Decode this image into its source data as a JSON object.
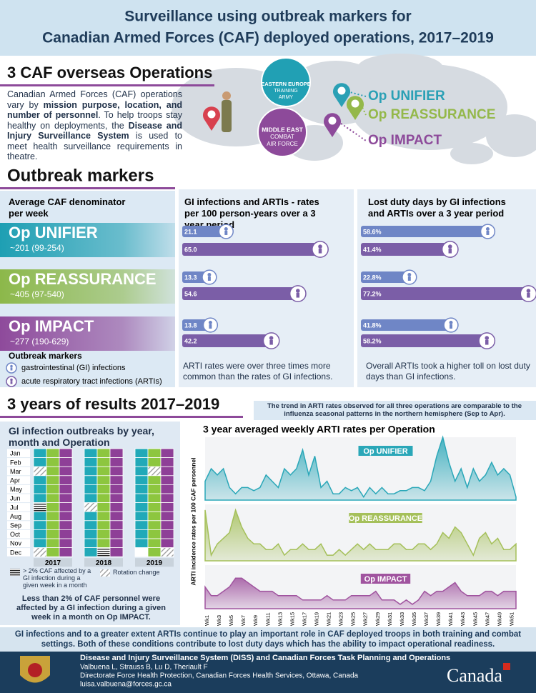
{
  "header": {
    "title_line1": "Surveillance using outbreak markers for",
    "title_line2": "Canadian Armed Forces (CAF) deployed operations, 2017–2019"
  },
  "operations": {
    "heading": "3 CAF overseas Operations",
    "paragraph": [
      {
        "text": "Canadian Armed Forces (CAF) operations vary by ",
        "bold": false
      },
      {
        "text": "mission purpose, location, and number of personnel",
        "bold": true
      },
      {
        "text": ". To help troops stay healthy on deployments, the ",
        "bold": false
      },
      {
        "text": "Disease and Injury Surveillance System",
        "bold": true
      },
      {
        "text": " is used to meet health surveillance requirements in theatre.",
        "bold": false
      }
    ],
    "europe_label": [
      "EASTERN EUROPE",
      "TRAINING",
      "ARMY"
    ],
    "mideast_label": [
      "MIDDLE EAST",
      "COMBAT",
      "AIR FORCE"
    ],
    "map_ops": [
      {
        "name": "Op UNIFIER",
        "color": "#2aa0b5"
      },
      {
        "name": "Op REASSURANCE",
        "color": "#94b84a"
      },
      {
        "name": "Op IMPACT",
        "color": "#8d4a9a"
      }
    ]
  },
  "outbreak_markers": {
    "heading": "Outbreak markers",
    "denominator_title": "Average CAF denominator per week",
    "ops": [
      {
        "name": "Op UNIFIER",
        "denominator": "~201 (99-254)",
        "color": "#1e9fb3"
      },
      {
        "name": "Op REASSURANCE",
        "denominator": "~405 (97-540)",
        "color": "#8cb84a"
      },
      {
        "name": "Op IMPACT",
        "denominator": "~277 (190-629)",
        "color": "#8e4a9b"
      }
    ],
    "legend": {
      "title": "Outbreak markers",
      "gi": "gastrointestinal (GI) infections",
      "arti": "acute respiratory tract infections (ARTIs)"
    },
    "rates_note": "ARTI rates were over three times more common than the rates of GI infections.",
    "lost_note": "Overall ARTIs took a higher toll on lost duty days than GI infections."
  },
  "chart_data": [
    {
      "type": "bar",
      "title": "GI infections and ARTIs - rates per 100 person-years over a 3 year period",
      "xlim": [
        0,
        80
      ],
      "series": [
        {
          "color": "#6f86c6",
          "values": [
            21.1,
            13.3,
            13.8
          ],
          "value_labels": [
            "21.1",
            "13.3",
            "13.8"
          ]
        },
        {
          "color": "#7b5ea7",
          "values": [
            65.0,
            54.6,
            42.2
          ],
          "value_labels": [
            "65.0",
            "54.6",
            "42.2"
          ]
        }
      ]
    },
    {
      "type": "bar",
      "title": "Lost duty days by GI infections and ARTIs over a 3 year period",
      "xlim": [
        0,
        80
      ],
      "series": [
        {
          "color": "#6f86c6",
          "values": [
            58.6,
            22.8,
            41.8
          ],
          "value_labels": [
            "58.6%",
            "22.8%",
            "41.8%"
          ]
        },
        {
          "color": "#7b5ea7",
          "values": [
            41.4,
            77.2,
            58.2
          ],
          "value_labels": [
            "41.4%",
            "77.2%",
            "58.2%"
          ]
        }
      ]
    },
    {
      "type": "area",
      "title": "3 year averaged weekly ARTI rates per Operation",
      "y_label": "ARTI incidence rates per 100 CAF personnel",
      "ylim": [
        0,
        10
      ],
      "categories": [
        "Wk1",
        null,
        "Wk3",
        null,
        "Wk5",
        null,
        "Wk7",
        null,
        "Wk9",
        null,
        "Wk11",
        null,
        "Wk13",
        null,
        "Wk15",
        null,
        "Wk17",
        null,
        "Wk19",
        null,
        "Wk21",
        null,
        "Wk23",
        null,
        "Wk25",
        null,
        "Wk27",
        null,
        "Wk29",
        null,
        "Wk31",
        null,
        "Wk33",
        null,
        "Wk35",
        null,
        "Wk37",
        null,
        "Wk39",
        null,
        "Wk41",
        null,
        "Wk43",
        null,
        "Wk45",
        null,
        "Wk47",
        null,
        "Wk49",
        null,
        "Wk51",
        null
      ],
      "series": [
        {
          "name": "Op UNIFIER",
          "color": "#2aa7b8",
          "values": [
            3,
            5,
            4,
            5,
            2,
            1,
            2,
            2,
            1.5,
            2,
            4,
            3,
            2,
            5,
            4,
            5,
            8,
            4,
            7,
            2,
            3,
            1,
            1,
            2,
            1.5,
            2,
            0.5,
            2,
            1,
            2,
            1,
            1,
            1.5,
            1.5,
            2,
            2,
            1.5,
            3,
            7,
            10,
            6,
            3,
            5,
            2,
            5,
            3,
            4,
            6,
            4,
            5,
            4,
            0.5
          ]
        },
        {
          "name": "Op REASSURANCE",
          "color": "#a5c05a",
          "values": [
            9,
            1,
            3,
            4,
            5,
            9,
            6,
            4,
            3,
            3,
            2,
            2,
            3,
            1,
            2,
            2,
            3,
            2,
            2,
            3,
            1,
            1,
            2,
            1,
            2,
            3,
            2,
            3,
            2,
            2,
            2,
            3,
            3,
            2,
            2,
            3,
            3,
            2,
            3,
            5,
            4,
            6,
            5,
            3,
            1,
            4,
            5,
            3,
            4,
            2,
            2,
            3
          ]
        },
        {
          "name": "Op IMPACT",
          "color": "#a0549f",
          "values": [
            5,
            3,
            3,
            4,
            5,
            7,
            7,
            6,
            5,
            4,
            4,
            4,
            3,
            3,
            3,
            3,
            2,
            2,
            2,
            2,
            3,
            2,
            2,
            2,
            3,
            3,
            3,
            3,
            4,
            2,
            2,
            2,
            1,
            2,
            1,
            2,
            4,
            3,
            4,
            4,
            5,
            6,
            4,
            3,
            3,
            3,
            4,
            4,
            3,
            4,
            4,
            4
          ]
        }
      ]
    }
  ],
  "results": {
    "heading": "3 years of results 2017–2019",
    "trend_note": "The trend in ARTI rates observed for all three operations are comparable to the influenza seasonal patterns in the northern hemisphere (Sep to Apr).",
    "gi_grid": {
      "title": "GI infection outbreaks by year, month and Operation",
      "months": [
        "Jan",
        "Feb",
        "Mar",
        "Apr",
        "May",
        "Jun",
        "Jul",
        "Aug",
        "Sep",
        "Oct",
        "Nov",
        "Dec"
      ],
      "op_colors": [
        "#21a9b8",
        "#8dc63f",
        "#8e3f97"
      ],
      "years": [
        {
          "label": "2017",
          "ops": [
            [
              1,
              1,
              3,
              1,
              1,
              1,
              2,
              1,
              1,
              1,
              1,
              3
            ],
            [
              1,
              1,
              1,
              1,
              1,
              1,
              1,
              1,
              1,
              1,
              1,
              1
            ],
            [
              1,
              1,
              1,
              1,
              1,
              1,
              1,
              1,
              1,
              1,
              1,
              1
            ]
          ]
        },
        {
          "label": "2018",
          "ops": [
            [
              1,
              1,
              1,
              1,
              1,
              1,
              3,
              1,
              1,
              1,
              1,
              1
            ],
            [
              1,
              1,
              1,
              1,
              1,
              1,
              1,
              1,
              1,
              1,
              1,
              2
            ],
            [
              1,
              1,
              1,
              1,
              1,
              1,
              1,
              1,
              1,
              1,
              1,
              1
            ]
          ]
        },
        {
          "label": "2019",
          "ops": [
            [
              1,
              1,
              1,
              1,
              1,
              1,
              1,
              1,
              1,
              1,
              1,
              0
            ],
            [
              1,
              1,
              3,
              1,
              1,
              1,
              1,
              1,
              1,
              1,
              1,
              1
            ],
            [
              1,
              1,
              1,
              1,
              1,
              1,
              1,
              1,
              1,
              1,
              1,
              3
            ]
          ]
        }
      ],
      "legend_stripe": "> 2% CAF affected by a GI infection during a given week in a month",
      "legend_rotation": "Rotation change",
      "note": "Less than 2% of CAF personnel were affected by a GI infection during a given week in a month on Op IMPACT."
    }
  },
  "footer": {
    "statement": "GI infections and to a greater extent ARTIs continue to play an important role in CAF deployed troops in both training and combat settings. Both of these conditions contribute to lost duty days which has the ability to impact operational readiness.",
    "org": "Disease and Injury Surveillance System (DISS) and  Canadian Forces Task Planning and Operations",
    "authors": "Valbuena L, Strauss B, Lu D, Theriault F",
    "directorate": "Directorate Force Health Protection, Canadian Forces Health Services, Ottawa, Canada",
    "email": "luisa.valbuena@forces.gc.ca",
    "canada": "Canada"
  }
}
